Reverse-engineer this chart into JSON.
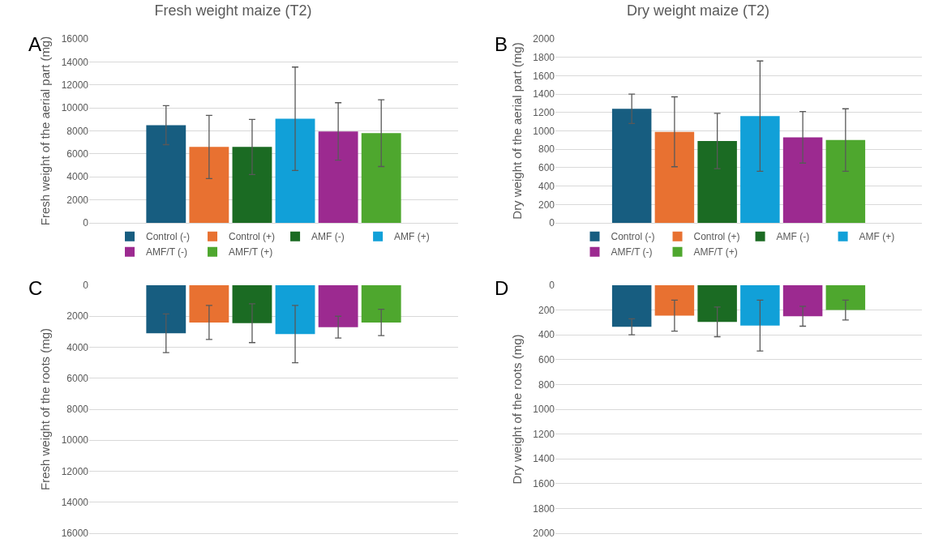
{
  "chart_data": [
    {
      "type": "bar",
      "title": "Fresh weight maize (T2)",
      "ylabel": "Fresh weight of the aerial part (mg)",
      "annotations": [
        "A"
      ],
      "categories": [
        null
      ],
      "ylim": [
        0,
        16000
      ],
      "yticks": [
        0,
        2000,
        4000,
        6000,
        8000,
        10000,
        12000,
        14000,
        16000
      ],
      "grid": "y",
      "legend": "bottom",
      "tick_labels": "y",
      "series": [
        {
          "name": "Control (-)",
          "color": "#175d80",
          "values": [
            8500
          ],
          "errors": [
            1700
          ]
        },
        {
          "name": "Control (+)",
          "color": "#e87131",
          "values": [
            6600
          ],
          "errors": [
            2750
          ]
        },
        {
          "name": "AMF (-)",
          "color": "#1b6b23",
          "values": [
            6600
          ],
          "errors": [
            2400
          ]
        },
        {
          "name": "AMF (+)",
          "color": "#11a0d8",
          "values": [
            9050
          ],
          "errors": [
            4500
          ]
        },
        {
          "name": "AMF/T (-)",
          "color": "#9c2a90",
          "values": [
            7950
          ],
          "errors": [
            2500
          ]
        },
        {
          "name": "AMF/T (+)",
          "color": "#4ea72e",
          "values": [
            7800
          ],
          "errors": [
            2900
          ]
        }
      ]
    },
    {
      "type": "bar",
      "title": "Dry weight maize (T2)",
      "ylabel": "Dry weight of the aerial part (mg)",
      "annotations": [
        "B"
      ],
      "categories": [
        null
      ],
      "ylim": [
        0,
        2000
      ],
      "yticks": [
        0,
        200,
        400,
        600,
        800,
        1000,
        1200,
        1400,
        1600,
        1800,
        2000
      ],
      "grid": "y",
      "legend": "bottom",
      "tick_labels": "y",
      "series": [
        {
          "name": "Control (-)",
          "color": "#175d80",
          "values": [
            1240
          ],
          "errors": [
            160
          ]
        },
        {
          "name": "Control (+)",
          "color": "#e87131",
          "values": [
            990
          ],
          "errors": [
            380
          ]
        },
        {
          "name": "AMF (-)",
          "color": "#1b6b23",
          "values": [
            890
          ],
          "errors": [
            300
          ]
        },
        {
          "name": "AMF (+)",
          "color": "#11a0d8",
          "values": [
            1160
          ],
          "errors": [
            600
          ]
        },
        {
          "name": "AMF/T (-)",
          "color": "#9c2a90",
          "values": [
            930
          ],
          "errors": [
            280
          ]
        },
        {
          "name": "AMF/T (+)",
          "color": "#4ea72e",
          "values": [
            900
          ],
          "errors": [
            340
          ]
        }
      ]
    },
    {
      "type": "bar",
      "ylabel": "Fresh weight of the roots (mg)",
      "annotations": [
        "C"
      ],
      "categories": [
        null
      ],
      "ylim": [
        16000,
        0
      ],
      "yticks": [
        0,
        2000,
        4000,
        6000,
        8000,
        10000,
        12000,
        14000,
        16000
      ],
      "grid": "y",
      "tick_labels": "y",
      "series": [
        {
          "color": "#175d80",
          "values": [
            3100
          ],
          "errors": [
            1250
          ]
        },
        {
          "color": "#e87131",
          "values": [
            2400
          ],
          "errors": [
            1100
          ]
        },
        {
          "color": "#1b6b23",
          "values": [
            2450
          ],
          "errors": [
            1250
          ]
        },
        {
          "color": "#11a0d8",
          "values": [
            3150
          ],
          "errors": [
            1850
          ]
        },
        {
          "color": "#9c2a90",
          "values": [
            2700
          ],
          "errors": [
            700
          ]
        },
        {
          "color": "#4ea72e",
          "values": [
            2400
          ],
          "errors": [
            850
          ]
        }
      ]
    },
    {
      "type": "bar",
      "ylabel": "Dry weight of the roots (mg)",
      "annotations": [
        "D"
      ],
      "categories": [
        null
      ],
      "ylim": [
        2000,
        0
      ],
      "yticks": [
        0,
        200,
        400,
        600,
        800,
        1000,
        1200,
        1400,
        1600,
        1800,
        2000
      ],
      "grid": "y",
      "tick_labels": "y",
      "series": [
        {
          "color": "#175d80",
          "values": [
            335
          ],
          "errors": [
            65
          ]
        },
        {
          "color": "#e87131",
          "values": [
            245
          ],
          "errors": [
            125
          ]
        },
        {
          "color": "#1b6b23",
          "values": [
            295
          ],
          "errors": [
            120
          ]
        },
        {
          "color": "#11a0d8",
          "values": [
            325
          ],
          "errors": [
            205
          ]
        },
        {
          "color": "#9c2a90",
          "values": [
            250
          ],
          "errors": [
            80
          ]
        },
        {
          "color": "#4ea72e",
          "values": [
            200
          ],
          "errors": [
            80
          ]
        }
      ]
    }
  ]
}
